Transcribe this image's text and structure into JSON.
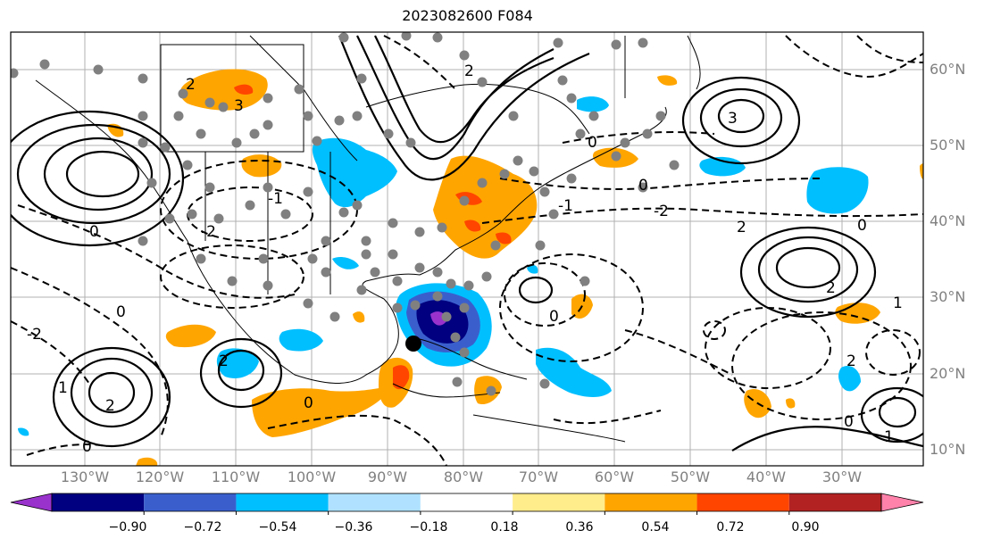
{
  "title": "2023082600 F084",
  "lat_labels": [
    "60°N",
    "50°N",
    "40°N",
    "30°N",
    "20°N",
    "10°N"
  ],
  "lon_labels": [
    "130°W",
    "120°W",
    "110°W",
    "100°W",
    "90°W",
    "80°W",
    "70°W",
    "60°W",
    "50°W",
    "40°W",
    "30°W"
  ],
  "contour_labels": [
    "-2",
    "-1",
    "0",
    "1",
    "2",
    "3"
  ],
  "colorbar": {
    "ticks": [
      "−0.90",
      "−0.72",
      "−0.54",
      "−0.36",
      "−0.18",
      "0.18",
      "0.36",
      "0.54",
      "0.72",
      "0.90"
    ],
    "colors": [
      "#9932cc",
      "#000080",
      "#3a5fcd",
      "#00bfff",
      "#b0e2ff",
      "#ffffff",
      "#ffec8b",
      "#ffa500",
      "#ff4500",
      "#b22222",
      "#ff82ab"
    ]
  }
}
